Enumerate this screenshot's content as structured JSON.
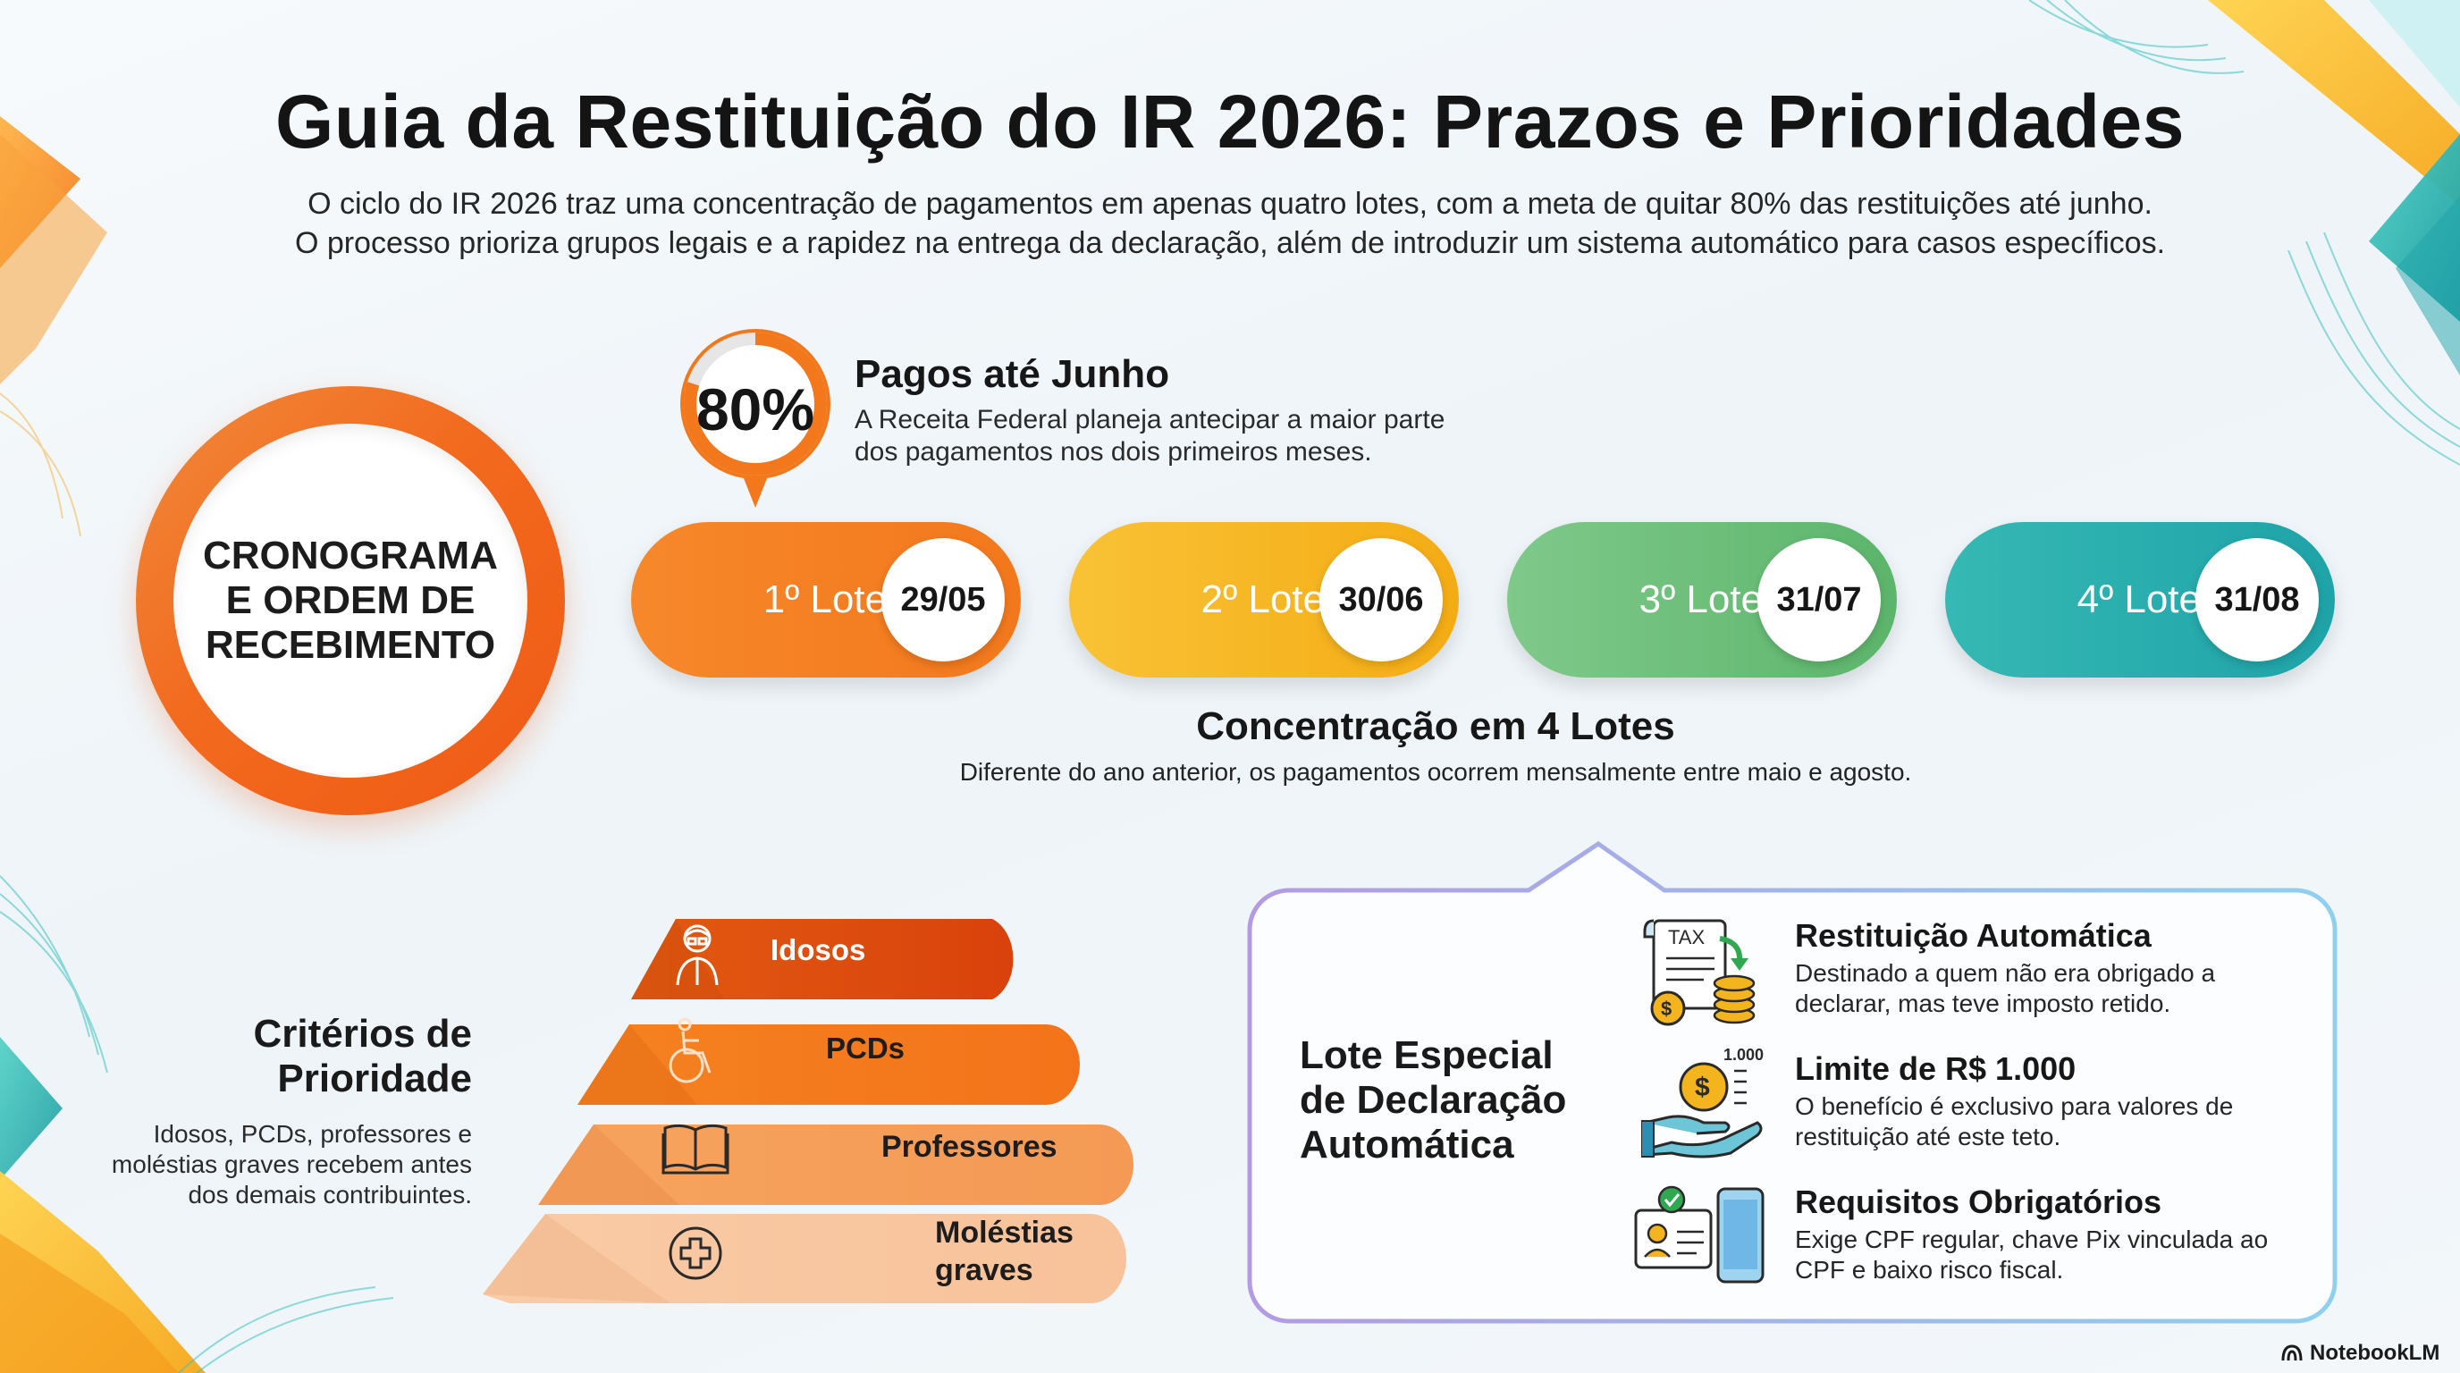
{
  "header": {
    "title": "Guia da Restituição do IR 2026: Prazos e Prioridades",
    "subtitle_line1": "O ciclo do IR 2026 traz uma concentração de pagamentos em apenas quatro lotes, com a meta de quitar 80% das restituições até junho.",
    "subtitle_line2": "O processo prioriza grupos legais e a rapidez na entrega da declaração, além de introduzir um sistema automático para casos específicos."
  },
  "schedule": {
    "label": "CRONOGRAMA\nE ORDEM DE\nRECEBIMENTO"
  },
  "paid": {
    "percent": "80%",
    "percent_value": 0.8,
    "title": "Pagos até Junho",
    "description": "A Receita Federal planeja antecipar a maior parte dos pagamentos nos dois primeiros meses."
  },
  "lots": [
    {
      "label": "1º Lote",
      "date": "29/05"
    },
    {
      "label": "2º Lote",
      "date": "30/06"
    },
    {
      "label": "3º Lote",
      "date": "31/07"
    },
    {
      "label": "4º Lote",
      "date": "31/08"
    }
  ],
  "concentration": {
    "title": "Concentração em 4 Lotes",
    "description": "Diferente do ano anterior, os pagamentos ocorrem mensalmente entre maio e agosto."
  },
  "criteria": {
    "title": "Critérios de\nPrioridade",
    "description": "Idosos, PCDs, professores e moléstias graves recebem antes dos demais contribuintes.",
    "tiers": [
      {
        "label": "Idosos",
        "icon": "elderly-person-icon"
      },
      {
        "label": "PCDs",
        "icon": "wheelchair-icon"
      },
      {
        "label": "Professores",
        "icon": "open-book-icon"
      },
      {
        "label": "Moléstias graves",
        "icon": "medical-cross-icon"
      }
    ]
  },
  "special": {
    "title": "Lote Especial\nde Declaração\nAutomática",
    "items": [
      {
        "title": "Restituição Automática",
        "description": "Destinado a quem não era obrigado a declarar, mas teve imposto retido.",
        "icon": "tax-document-icon",
        "icon_text": "TAX"
      },
      {
        "title": "Limite de R$ 1.000",
        "description": "O benefício é exclusivo para valores de restituição até este teto.",
        "icon": "hand-coin-icon",
        "icon_text": "1.000"
      },
      {
        "title": "Requisitos Obrigatórios",
        "description": "Exige CPF regular, chave Pix vinculada ao CPF e baixo risco fiscal.",
        "icon": "id-card-phone-icon"
      }
    ]
  },
  "footer": {
    "brand": "NotebookLM"
  },
  "colors": {
    "orange": "#f3781c",
    "yellow": "#f4ac14",
    "green": "#5cb56b",
    "teal": "#1ea3a8",
    "purple_border": "#b49ae0"
  }
}
